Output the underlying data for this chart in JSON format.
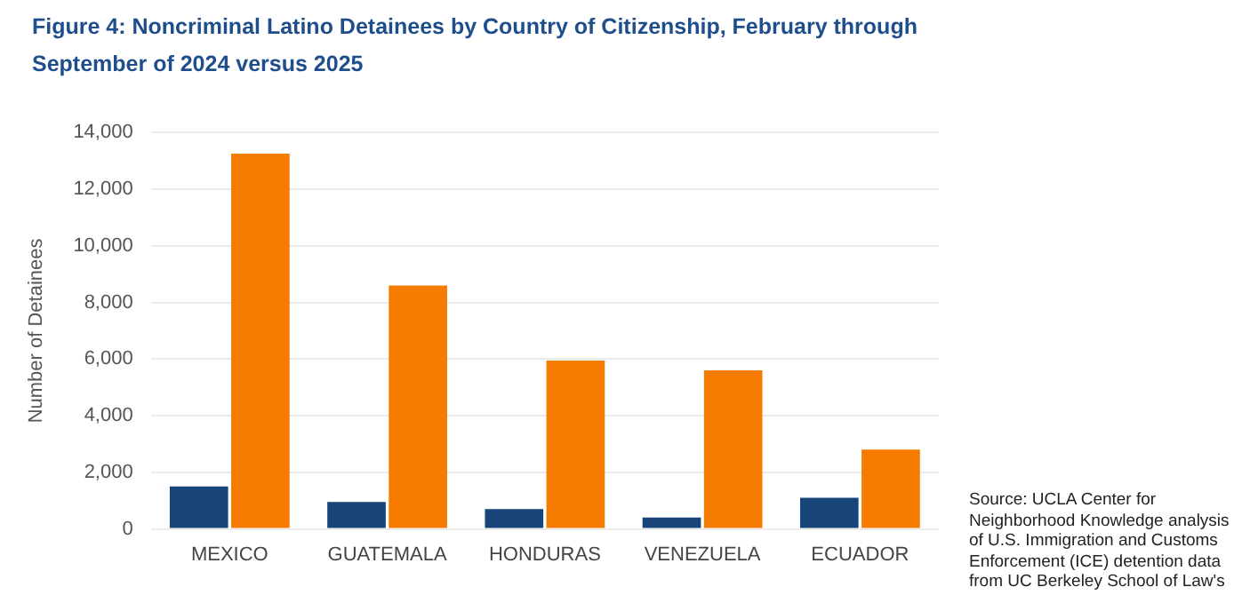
{
  "chart_data": {
    "type": "bar",
    "title": "Figure 4: Noncriminal Latino Detainees by Country of Citizenship, February through September of 2024 versus 2025",
    "ylabel": "Number of Detainees",
    "categories": [
      "MEXICO",
      "GUATEMALA",
      "HONDURAS",
      "VENEZUELA",
      "ECUADOR"
    ],
    "series": [
      {
        "color": "#17457a",
        "values": [
          1500,
          950,
          700,
          400,
          1100
        ]
      },
      {
        "color": "#f57c00",
        "values": [
          13250,
          8600,
          5950,
          5600,
          2800
        ]
      }
    ],
    "ylim": [
      0,
      14000
    ],
    "yticks": [
      {
        "value": 0,
        "label": "0"
      },
      {
        "value": 2000,
        "label": "2,000"
      },
      {
        "value": 4000,
        "label": "4,000"
      },
      {
        "value": 6000,
        "label": "6,000"
      },
      {
        "value": 8000,
        "label": "8,000"
      },
      {
        "value": 10000,
        "label": "10,000"
      },
      {
        "value": 12000,
        "label": "12,000"
      },
      {
        "value": 14000,
        "label": "14,000"
      }
    ],
    "grid": "y",
    "annotations": [
      "Source: UCLA Center for Neighborhood Knowledge analysis of U.S. Immigration and Customs Enforcement (ICE) detention data from UC Berkeley School of Law's"
    ]
  }
}
